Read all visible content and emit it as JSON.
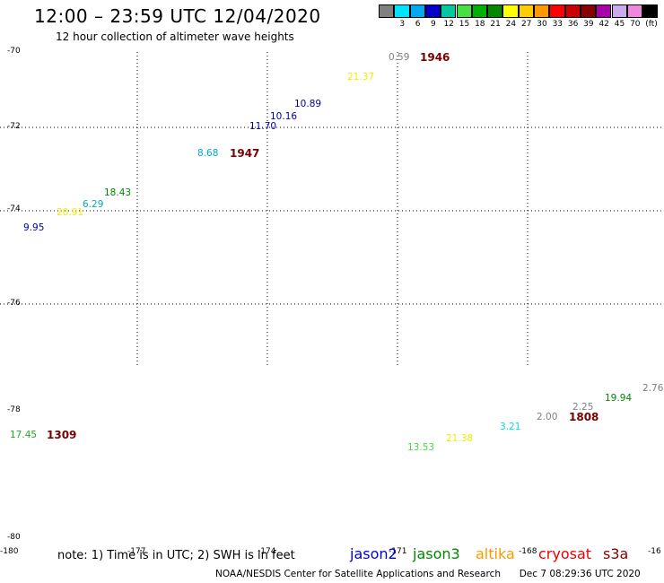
{
  "header": {
    "title": "12:00 – 23:59 UTC 12/04/2020",
    "subtitle": "12 hour collection of altimeter wave heights"
  },
  "color_scale": {
    "unit": "(ft)",
    "bins": [
      {
        "color": "#808080",
        "label": ""
      },
      {
        "color": "#00e5ff",
        "label": "3"
      },
      {
        "color": "#00aaee",
        "label": "6"
      },
      {
        "color": "#0000cc",
        "label": "9"
      },
      {
        "color": "#00c8a0",
        "label": "12"
      },
      {
        "color": "#44e044",
        "label": "15"
      },
      {
        "color": "#00b000",
        "label": "18"
      },
      {
        "color": "#008800",
        "label": "21"
      },
      {
        "color": "#ffff00",
        "label": "24"
      },
      {
        "color": "#ffcc00",
        "label": "27"
      },
      {
        "color": "#ff9900",
        "label": "30"
      },
      {
        "color": "#ff0000",
        "label": "33"
      },
      {
        "color": "#cc0000",
        "label": "36"
      },
      {
        "color": "#880000",
        "label": "39"
      },
      {
        "color": "#aa00aa",
        "label": "42"
      },
      {
        "color": "#ccaaee",
        "label": "45"
      },
      {
        "color": "#ee88dd",
        "label": "70"
      },
      {
        "color": "#000000",
        "label": ""
      }
    ]
  },
  "map": {
    "lat_labels": [
      "-70",
      "-72",
      "-74",
      "-76",
      "-78",
      "-80"
    ],
    "lon_labels": [
      "-180",
      "-177",
      "-174",
      "-171",
      "-168",
      "-16"
    ],
    "wave_heights": [
      {
        "value": "9.95",
        "color": "#0000aa"
      },
      {
        "value": "20.91",
        "color": "#eeee00"
      },
      {
        "value": "6.29",
        "color": "#00aacc"
      },
      {
        "value": "18.43",
        "color": "#008800"
      },
      {
        "value": "8.68",
        "color": "#00aacc"
      },
      {
        "value": "11.70",
        "color": "#0000aa"
      },
      {
        "value": "10.16",
        "color": "#0000aa"
      },
      {
        "value": "10.89",
        "color": "#0000aa"
      },
      {
        "value": "21.37",
        "color": "#eeee00"
      },
      {
        "value": "0.59",
        "color": "#808080"
      },
      {
        "value": "17.45",
        "color": "#22aa22"
      },
      {
        "value": "13.53",
        "color": "#44dd44"
      },
      {
        "value": "21.38",
        "color": "#eeee00"
      },
      {
        "value": "3.21",
        "color": "#00dddd"
      },
      {
        "value": "2.00",
        "color": "#808080"
      },
      {
        "value": "2.25",
        "color": "#808080"
      },
      {
        "value": "19.94",
        "color": "#008800"
      },
      {
        "value": "2.76",
        "color": "#808080"
      }
    ],
    "pass_times": [
      "1946",
      "1947",
      "1309",
      "1808"
    ]
  },
  "legend": {
    "note": "note: 1) Time is in UTC; 2) SWH is in feet",
    "satellites": [
      {
        "name": "jason2",
        "color": "#0000dd"
      },
      {
        "name": "jason3",
        "color": "#008800"
      },
      {
        "name": "altika",
        "color": "#ff9900"
      },
      {
        "name": "cryosat",
        "color": "#ee0000"
      },
      {
        "name": "s3a",
        "color": "#880000"
      }
    ]
  },
  "footer": {
    "credit": "NOAA/NESDIS Center for Satellite Applications and Research",
    "timestamp": "Dec  7 08:29:36 UTC 2020"
  }
}
